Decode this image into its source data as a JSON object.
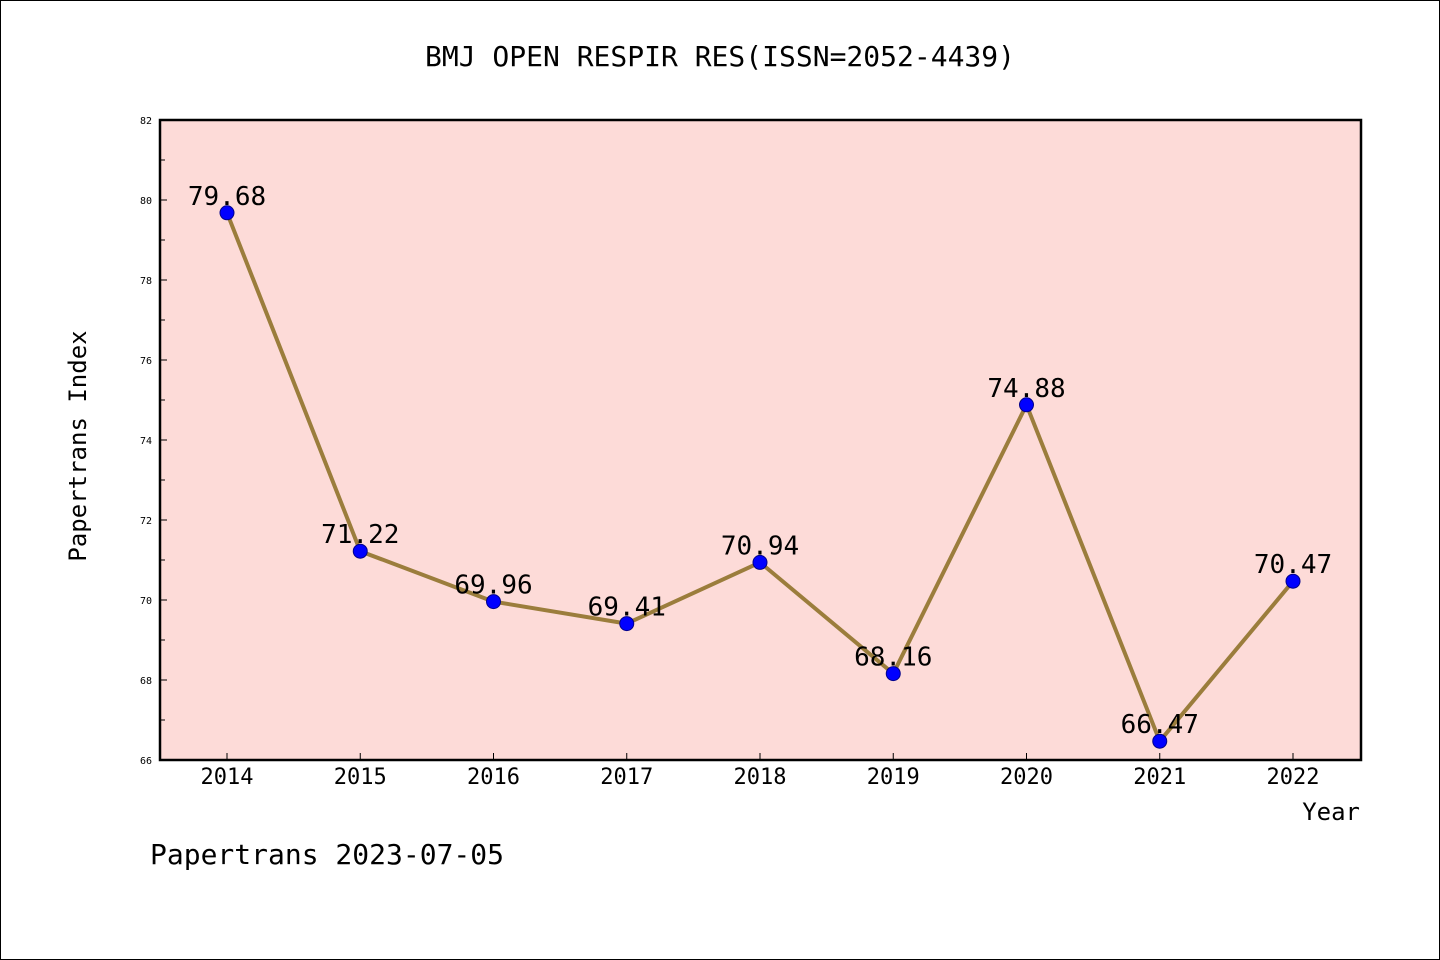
{
  "chart_data": {
    "type": "line",
    "title": "BMJ OPEN RESPIR RES(ISSN=2052-4439)",
    "xlabel": "Year",
    "ylabel": "Papertrans Index",
    "categories": [
      "2014",
      "2015",
      "2016",
      "2017",
      "2018",
      "2019",
      "2020",
      "2021",
      "2022"
    ],
    "values": [
      79.68,
      71.22,
      69.96,
      69.41,
      70.94,
      68.16,
      74.88,
      66.47,
      70.47
    ],
    "value_labels": [
      "79.68",
      "71.22",
      "69.96",
      "69.41",
      "70.94",
      "68.16",
      "74.88",
      "66.47",
      "70.47"
    ],
    "ylim": [
      66,
      82
    ],
    "yticks": [
      "66",
      "68",
      "70",
      "72",
      "74",
      "76",
      "78",
      "80",
      "82"
    ],
    "grid": false,
    "colors": {
      "plot_background": "#fddbd8",
      "line": "#9b7d3c",
      "marker": "#0000ff"
    }
  },
  "footer": "Papertrans 2023-07-05"
}
